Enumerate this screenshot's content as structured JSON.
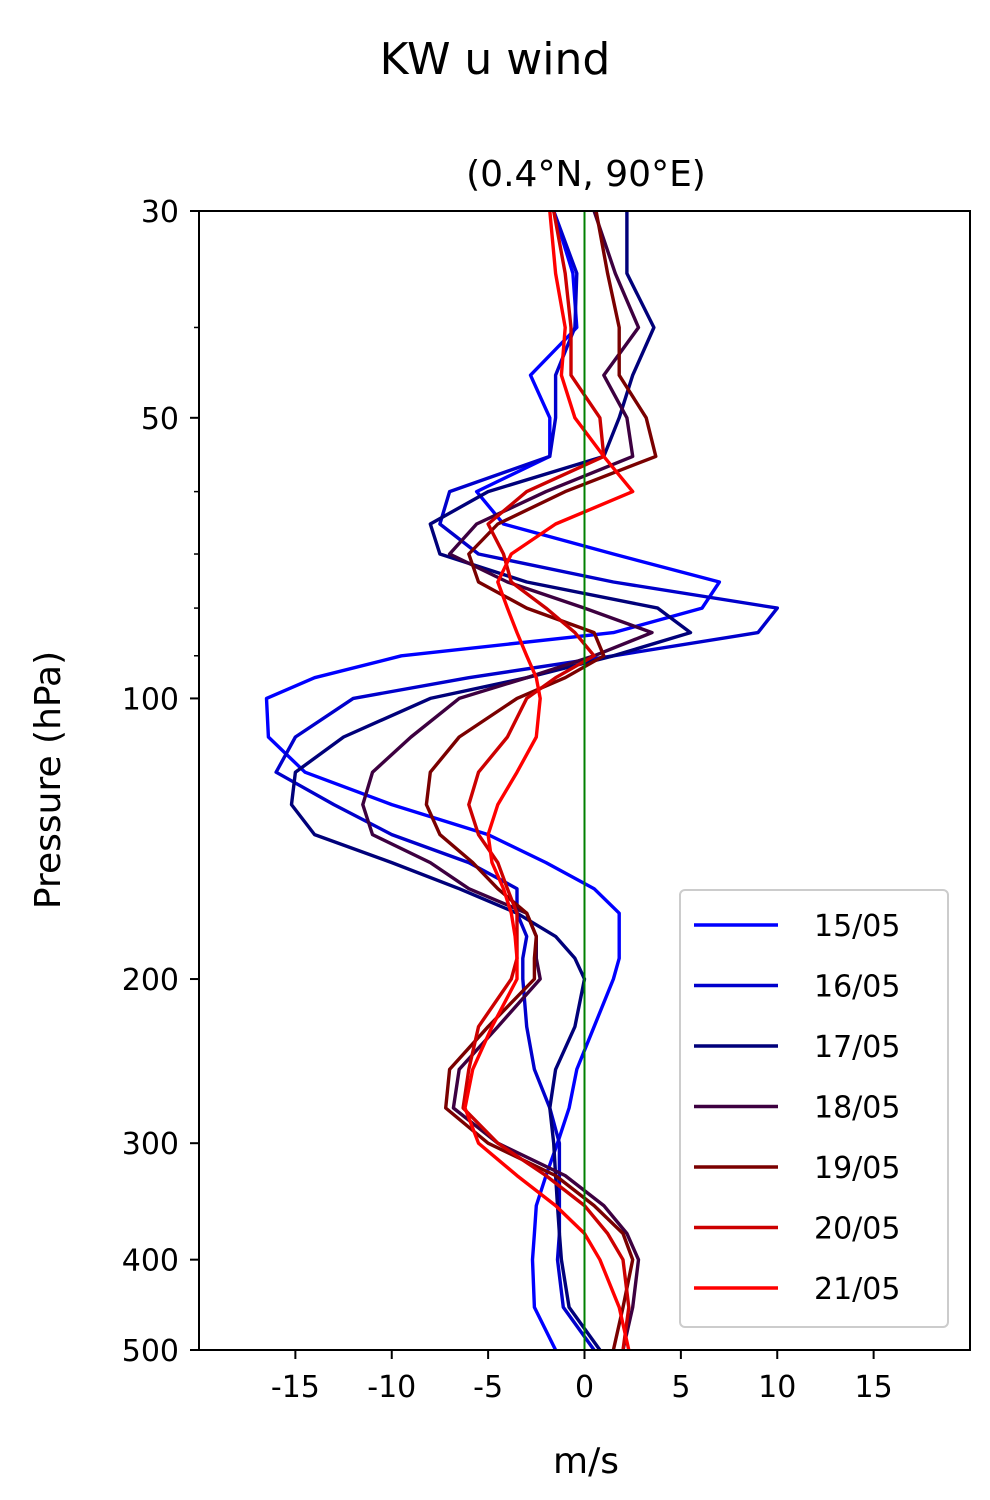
{
  "chart_data": {
    "type": "line",
    "title": "KW u wind",
    "subtitle": "(0.4°N, 90°E)",
    "xlabel": "m/s",
    "ylabel": "Pressure (hPa)",
    "xlim": [
      -20,
      20
    ],
    "ylim": [
      500,
      30
    ],
    "yscale": "log",
    "x_ticks": [
      -15,
      -10,
      -5,
      0,
      5,
      10,
      15
    ],
    "x_tick_labels": [
      "-15",
      "-10",
      "-5",
      "0",
      "5",
      "10",
      "15"
    ],
    "y_ticks": [
      30,
      50,
      100,
      200,
      300,
      400,
      500
    ],
    "y_tick_labels": [
      "30",
      "50",
      "100",
      "200",
      "300",
      "400",
      "500"
    ],
    "y_minor_ticks": [
      40,
      60,
      70,
      80,
      90
    ],
    "vline": {
      "x": 0,
      "color": "#008000"
    },
    "grid": false,
    "legend_position": "lower right",
    "pressure_levels": [
      30,
      35,
      40,
      45,
      50,
      55,
      60,
      65,
      70,
      75,
      80,
      85,
      90,
      95,
      100,
      110,
      120,
      130,
      140,
      150,
      160,
      170,
      180,
      190,
      200,
      225,
      250,
      275,
      300,
      325,
      350,
      375,
      400,
      450,
      500
    ],
    "series": [
      {
        "name": "15/05",
        "color": "#0000ff",
        "values": [
          -1.6,
          -0.6,
          -0.4,
          -2.8,
          -1.8,
          -1.8,
          -5.6,
          -4.2,
          1.5,
          7.0,
          6.1,
          1.5,
          -9.5,
          -14.0,
          -16.5,
          -16.4,
          -14.5,
          -10.0,
          -5.0,
          -2.0,
          0.5,
          1.8,
          1.8,
          1.8,
          1.5,
          0.5,
          -0.4,
          -0.8,
          -1.4,
          -2.0,
          -2.5,
          -2.6,
          -2.7,
          -2.6,
          -1.5
        ]
      },
      {
        "name": "16/05",
        "color": "#0000cc",
        "values": [
          -1.6,
          -0.4,
          -0.5,
          -1.5,
          -1.5,
          -1.8,
          -7.0,
          -7.5,
          -5.5,
          1.5,
          10.0,
          9.0,
          1.5,
          -6.0,
          -12.0,
          -15.0,
          -16.0,
          -13.0,
          -10.0,
          -6.0,
          -3.5,
          -3.5,
          -3.0,
          -3.2,
          -3.2,
          -3.0,
          -2.6,
          -1.8,
          -1.3,
          -1.3,
          -1.3,
          -1.3,
          -1.4,
          -1.1,
          0.5
        ]
      },
      {
        "name": "17/05",
        "color": "#00007a",
        "values": [
          2.2,
          2.2,
          3.6,
          2.5,
          1.8,
          1.0,
          -5.0,
          -8.0,
          -7.5,
          -3.0,
          3.8,
          5.5,
          1.5,
          -3.0,
          -8.0,
          -12.5,
          -15.0,
          -15.2,
          -14.0,
          -10.0,
          -6.5,
          -3.5,
          -1.5,
          -0.5,
          0.0,
          -0.5,
          -1.5,
          -1.8,
          -1.6,
          -1.5,
          -1.4,
          -1.3,
          -1.2,
          -0.8,
          0.8
        ]
      },
      {
        "name": "18/05",
        "color": "#3d0040",
        "values": [
          0.5,
          1.6,
          2.8,
          1.0,
          2.2,
          2.5,
          -2.0,
          -5.6,
          -7.0,
          -4.0,
          0.0,
          3.5,
          0.5,
          -3.0,
          -6.5,
          -9.0,
          -11.0,
          -11.5,
          -11.0,
          -8.0,
          -6.0,
          -3.0,
          -2.5,
          -2.5,
          -2.3,
          -4.5,
          -6.5,
          -6.8,
          -4.5,
          -1.0,
          1.0,
          2.2,
          2.8,
          2.5,
          2.0
        ]
      },
      {
        "name": "19/05",
        "color": "#7a0000",
        "values": [
          0.6,
          1.2,
          1.8,
          1.8,
          3.2,
          3.7,
          -1.0,
          -4.5,
          -6.0,
          -5.5,
          -3.0,
          0.5,
          1.0,
          -1.0,
          -3.5,
          -6.5,
          -8.0,
          -8.2,
          -7.5,
          -5.8,
          -4.5,
          -3.0,
          -2.5,
          -2.6,
          -2.6,
          -5.0,
          -7.0,
          -7.2,
          -5.0,
          -1.5,
          0.5,
          2.0,
          2.5,
          2.0,
          1.5
        ]
      },
      {
        "name": "20/05",
        "color": "#cc0000",
        "values": [
          -1.6,
          -1.0,
          -0.7,
          -0.7,
          0.8,
          1.0,
          -3.0,
          -5.0,
          -4.2,
          -3.8,
          -2.0,
          -0.5,
          0.5,
          -1.5,
          -3.0,
          -4.0,
          -5.5,
          -6.0,
          -5.5,
          -4.5,
          -4.0,
          -3.5,
          -3.5,
          -3.5,
          -3.8,
          -5.5,
          -6.0,
          -6.3,
          -4.5,
          -2.0,
          0.0,
          1.2,
          2.0,
          2.3,
          2.0
        ]
      },
      {
        "name": "21/05",
        "color": "#ff0000",
        "values": [
          -1.8,
          -1.5,
          -1.0,
          -1.2,
          -0.5,
          1.0,
          2.5,
          -1.5,
          -3.8,
          -4.5,
          -4.0,
          -3.5,
          -3.0,
          -2.5,
          -2.3,
          -2.5,
          -3.5,
          -4.5,
          -5.0,
          -4.8,
          -4.2,
          -3.8,
          -3.6,
          -3.5,
          -3.5,
          -4.8,
          -5.8,
          -6.2,
          -5.5,
          -3.5,
          -1.5,
          0.0,
          0.8,
          1.8,
          2.3
        ]
      }
    ]
  }
}
